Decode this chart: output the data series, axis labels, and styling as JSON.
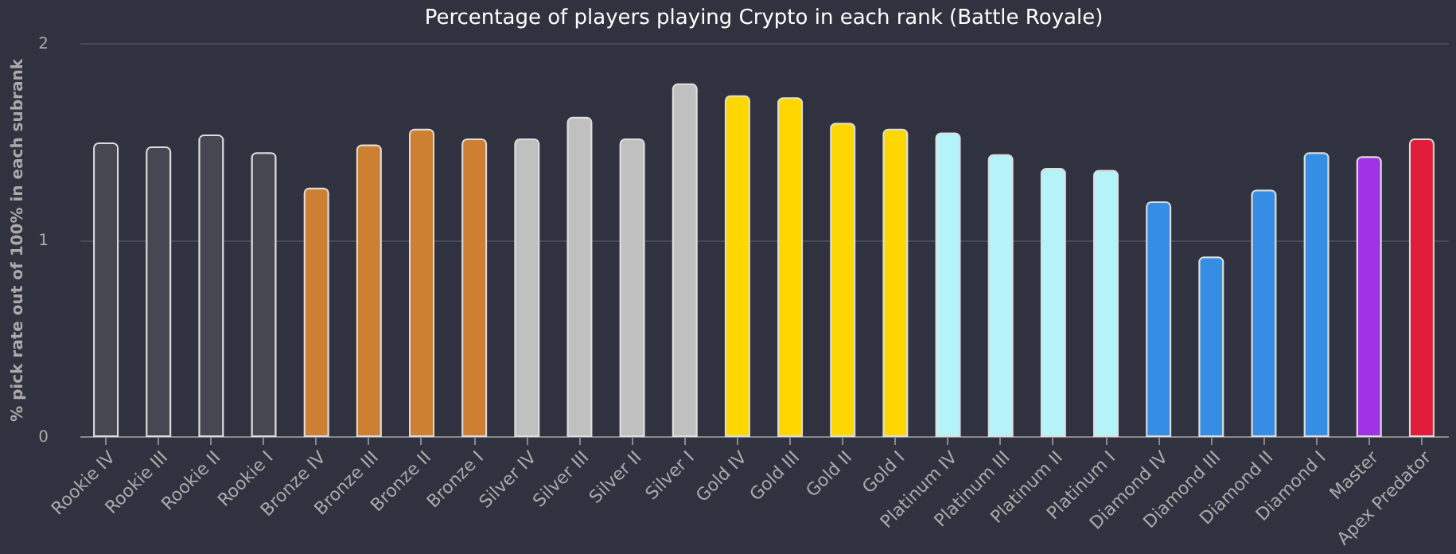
{
  "chart_data": {
    "type": "bar",
    "title": "Percentage of players playing Crypto in each rank (Battle Royale)",
    "ylabel": "% pick rate out of 100% in each subrank",
    "categories": [
      "Rookie IV",
      "Rookie III",
      "Rookie II",
      "Rookie I",
      "Bronze IV",
      "Bronze III",
      "Bronze II",
      "Bronze I",
      "Silver IV",
      "Silver III",
      "Silver II",
      "Silver I",
      "Gold IV",
      "Gold III",
      "Gold II",
      "Gold I",
      "Platinum IV",
      "Platinum III",
      "Platinum II",
      "Platinum I",
      "Diamond IV",
      "Diamond III",
      "Diamond II",
      "Diamond I",
      "Master",
      "Apex Predator"
    ],
    "values": [
      1.49,
      1.47,
      1.53,
      1.44,
      1.26,
      1.48,
      1.56,
      1.51,
      1.51,
      1.62,
      1.51,
      1.79,
      1.73,
      1.72,
      1.59,
      1.56,
      1.54,
      1.43,
      1.36,
      1.35,
      1.19,
      0.91,
      1.25,
      1.44,
      1.42,
      1.51
    ],
    "colors": [
      "#464750",
      "#464750",
      "#464750",
      "#464750",
      "#cd7f32",
      "#cd7f32",
      "#cd7f32",
      "#cd7f32",
      "#c0c0c0",
      "#c0c0c0",
      "#c0c0c0",
      "#c0c0c0",
      "#ffd700",
      "#ffd700",
      "#ffd700",
      "#ffd700",
      "#b4f3f8",
      "#b4f3f8",
      "#b4f3f8",
      "#b4f3f8",
      "#368ee4",
      "#368ee4",
      "#368ee4",
      "#368ee4",
      "#a033e4",
      "#e11d3b"
    ],
    "ylim": [
      0,
      2
    ],
    "yticks": [
      0,
      1,
      2
    ],
    "grid": "y"
  }
}
